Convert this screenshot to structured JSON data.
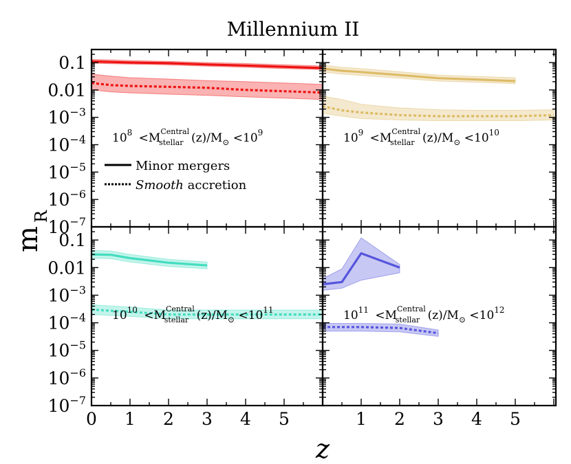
{
  "chart_data": {
    "type": "line",
    "title": "Millennium II",
    "xlabel": "z",
    "ylabel": "m",
    "ylabel_sub": "R",
    "yscale": "log",
    "ylim": [
      1e-07,
      0.3
    ],
    "y_tick_values": [
      0.1,
      0.01,
      0.001,
      0.0001,
      1e-05,
      1e-06,
      1e-07
    ],
    "y_tick_labels": [
      {
        "base": "0.1",
        "exp": ""
      },
      {
        "base": "0.01",
        "exp": ""
      },
      {
        "base": "10",
        "exp": "−3"
      },
      {
        "base": "10",
        "exp": "−4"
      },
      {
        "base": "10",
        "exp": "−5"
      },
      {
        "base": "10",
        "exp": "−6"
      },
      {
        "base": "10",
        "exp": "−7"
      }
    ],
    "xlim": [
      0,
      6
    ],
    "x_ticks": [
      0,
      1,
      2,
      3,
      4,
      5
    ],
    "x_tick_labels": [
      "0",
      "1",
      "2",
      "3",
      "4",
      "5"
    ],
    "legend": {
      "placement": "top-left panel, lower-left",
      "entries": [
        {
          "label": "Minor  mergers",
          "italic": "",
          "style": "solid"
        },
        {
          "label": "accretion",
          "italic": "Smooth",
          "style": "dotted"
        }
      ]
    },
    "panels": [
      {
        "name": "top-left",
        "color": "#ee1111",
        "label": {
          "lo_exp": "8",
          "hi_exp": "9"
        },
        "series": [
          {
            "name": "Minor mergers",
            "style": "solid",
            "x": [
              0,
              0.5,
              1,
              2,
              3,
              4,
              5,
              6
            ],
            "y": [
              0.11,
              0.105,
              0.1,
              0.095,
              0.085,
              0.078,
              0.07,
              0.063
            ],
            "lo": [
              0.095,
              0.09,
              0.088,
              0.082,
              0.074,
              0.067,
              0.06,
              0.055
            ],
            "hi": [
              0.13,
              0.125,
              0.118,
              0.11,
              0.1,
              0.092,
              0.083,
              0.075
            ]
          },
          {
            "name": "Smooth accretion",
            "style": "dotted",
            "x": [
              0,
              0.5,
              1,
              2,
              3,
              4,
              5,
              6
            ],
            "y": [
              0.018,
              0.015,
              0.014,
              0.013,
              0.012,
              0.01,
              0.009,
              0.008
            ],
            "lo": [
              0.01,
              0.0085,
              0.0078,
              0.007,
              0.0063,
              0.0056,
              0.005,
              0.0045
            ],
            "hi": [
              0.038,
              0.032,
              0.028,
              0.025,
              0.022,
              0.02,
              0.018,
              0.016
            ]
          }
        ]
      },
      {
        "name": "top-right",
        "color": "#ddbb66",
        "label": {
          "lo_exp": "9",
          "hi_exp": "10"
        },
        "series": [
          {
            "name": "Minor mergers",
            "style": "solid",
            "x": [
              0,
              0.5,
              1,
              2,
              3,
              4,
              5
            ],
            "y": [
              0.06,
              0.05,
              0.045,
              0.035,
              0.027,
              0.024,
              0.021
            ],
            "lo": [
              0.045,
              0.038,
              0.034,
              0.027,
              0.021,
              0.019,
              0.017
            ],
            "hi": [
              0.08,
              0.067,
              0.06,
              0.046,
              0.035,
              0.031,
              0.028
            ]
          },
          {
            "name": "Smooth accretion",
            "style": "dotted",
            "x": [
              0,
              0.5,
              1,
              2,
              3,
              4,
              5,
              6
            ],
            "y": [
              0.0025,
              0.0018,
              0.0015,
              0.0012,
              0.0011,
              0.0011,
              0.0011,
              0.0012
            ],
            "lo": [
              0.0014,
              0.0011,
              0.0009,
              0.0008,
              0.00075,
              0.00075,
              0.00075,
              0.0008
            ],
            "hi": [
              0.006,
              0.0045,
              0.003,
              0.0022,
              0.0019,
              0.0018,
              0.0018,
              0.0019
            ]
          }
        ]
      },
      {
        "name": "bottom-left",
        "color": "#44ddc0",
        "label": {
          "lo_exp": "10",
          "hi_exp": "11"
        },
        "series": [
          {
            "name": "Minor mergers",
            "style": "solid",
            "x": [
              0,
              0.5,
              1,
              2,
              3
            ],
            "y": [
              0.03,
              0.029,
              0.022,
              0.015,
              0.012
            ],
            "lo": [
              0.022,
              0.021,
              0.016,
              0.011,
              0.009
            ],
            "hi": [
              0.042,
              0.04,
              0.03,
              0.02,
              0.016
            ]
          },
          {
            "name": "Smooth accretion",
            "style": "dotted",
            "x": [
              0,
              1,
              2,
              3,
              4,
              5,
              6
            ],
            "y": [
              0.0003,
              0.00025,
              0.0002,
              0.0002,
              0.0002,
              0.0002,
              0.0002
            ],
            "lo": [
              0.0002,
              0.00017,
              0.00014,
              0.00014,
              0.00014,
              0.00014,
              0.00014
            ],
            "hi": [
              0.00045,
              0.00037,
              0.00029,
              0.00029,
              0.00029,
              0.00029,
              0.00029
            ]
          }
        ]
      },
      {
        "name": "bottom-right",
        "color": "#5555dd",
        "label": {
          "lo_exp": "11",
          "hi_exp": "12"
        },
        "series": [
          {
            "name": "Minor mergers",
            "style": "solid",
            "x": [
              0,
              0.5,
              1,
              2
            ],
            "y": [
              0.0025,
              0.003,
              0.033,
              0.01
            ],
            "lo": [
              0.0015,
              0.0018,
              0.0035,
              0.0065
            ],
            "hi": [
              0.004,
              0.009,
              0.12,
              0.013
            ]
          },
          {
            "name": "Smooth accretion",
            "style": "dotted",
            "x": [
              0,
              0.5,
              1,
              2,
              3
            ],
            "y": [
              7e-05,
              7e-05,
              7e-05,
              6.5e-05,
              4.2e-05
            ],
            "lo": [
              5e-05,
              5e-05,
              5e-05,
              4.7e-05,
              3.2e-05
            ],
            "hi": [
              9.5e-05,
              9.5e-05,
              9.5e-05,
              9e-05,
              5.5e-05
            ]
          }
        ]
      }
    ],
    "panel_label_text": {
      "lt": "<M",
      "sup": "Central",
      "sub": "stellar",
      "mid": "(z)/M",
      "sun": "⊙",
      "lt2": "<10",
      "ten": "10"
    }
  }
}
